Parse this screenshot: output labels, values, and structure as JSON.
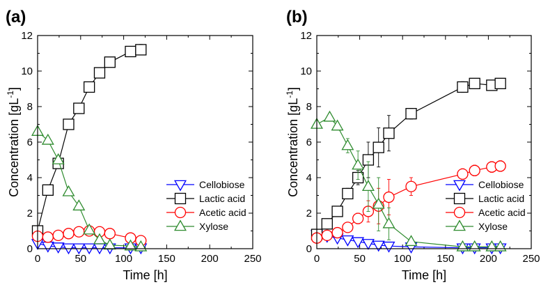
{
  "chart_data": [
    {
      "type": "line",
      "panel_label": "(a)",
      "xlabel": "Time [h]",
      "ylabel_main": "Concentration [gL",
      "ylabel_sup": "-1",
      "ylabel_close": "]",
      "xlim": [
        0,
        250
      ],
      "ylim": [
        0,
        12
      ],
      "x_ticks": [
        "0",
        "50",
        "100",
        "150",
        "200",
        "250"
      ],
      "y_ticks": [
        "0",
        "2",
        "4",
        "6",
        "8",
        "10",
        "12"
      ],
      "grid": false,
      "legend": "bottom-right",
      "series": [
        {
          "name": "Cellobiose",
          "color": "#0000ff",
          "marker": "triangle-down",
          "x": [
            0,
            12,
            24,
            36,
            48,
            60,
            72,
            84,
            108,
            120
          ],
          "y": [
            0.3,
            0.15,
            0.1,
            0.05,
            0.05,
            0.05,
            0.05,
            0.05,
            0.05,
            0.05
          ],
          "err": [
            0.05,
            0.05,
            0.05,
            0.05,
            0.05,
            0.05,
            0.05,
            0.05,
            0.05,
            0.05
          ]
        },
        {
          "name": "Lactic acid",
          "color": "#000000",
          "marker": "square",
          "x": [
            0,
            12,
            24,
            36,
            48,
            60,
            72,
            84,
            108,
            120
          ],
          "y": [
            1.0,
            3.3,
            4.8,
            7.0,
            7.9,
            9.1,
            9.9,
            10.5,
            11.1,
            11.2
          ],
          "err": [
            0.1,
            0.15,
            0.15,
            0.15,
            0.15,
            0.15,
            0.15,
            0.2,
            0.2,
            0.3
          ]
        },
        {
          "name": "Acetic acid",
          "color": "#ff0000",
          "marker": "circle",
          "x": [
            0,
            12,
            24,
            36,
            48,
            60,
            72,
            84,
            108,
            120
          ],
          "y": [
            0.7,
            0.65,
            0.75,
            0.85,
            0.95,
            1.0,
            0.95,
            0.85,
            0.6,
            0.45
          ],
          "err": [
            0.1,
            0.1,
            0.1,
            0.1,
            0.15,
            0.15,
            0.15,
            0.15,
            0.2,
            0.25
          ]
        },
        {
          "name": "Xylose",
          "color": "#2e8b2e",
          "marker": "triangle-up",
          "x": [
            0,
            12,
            24,
            36,
            48,
            60,
            72,
            84,
            108,
            120
          ],
          "y": [
            6.6,
            6.1,
            5.0,
            3.2,
            2.4,
            1.05,
            0.5,
            0.2,
            0.15,
            0.1
          ],
          "err": [
            0.1,
            0.1,
            0.1,
            0.1,
            0.1,
            0.1,
            0.1,
            0.05,
            0.05,
            0.05
          ]
        }
      ]
    },
    {
      "type": "line",
      "panel_label": "(b)",
      "xlabel": "Time [h]",
      "ylabel_main": "Concentration [gL",
      "ylabel_sup": "-1",
      "ylabel_close": "]",
      "xlim": [
        0,
        250
      ],
      "ylim": [
        0,
        12
      ],
      "x_ticks": [
        "0",
        "50",
        "100",
        "150",
        "200",
        "250"
      ],
      "y_ticks": [
        "0",
        "2",
        "4",
        "6",
        "8",
        "10",
        "12"
      ],
      "grid": false,
      "legend": "bottom-right",
      "series": [
        {
          "name": "Cellobiose",
          "color": "#0000ff",
          "marker": "triangle-down",
          "x": [
            0,
            12,
            24,
            36,
            48,
            60,
            72,
            84,
            110,
            170,
            184,
            204,
            214
          ],
          "y": [
            0.8,
            0.7,
            0.6,
            0.5,
            0.4,
            0.3,
            0.2,
            0.15,
            0.1,
            0.05,
            0.05,
            0.05,
            0.05
          ],
          "err": [
            0.1,
            0.1,
            0.1,
            0.1,
            0.1,
            0.1,
            0.1,
            0.1,
            0.1,
            0.05,
            0.05,
            0.05,
            0.05
          ]
        },
        {
          "name": "Lactic acid",
          "color": "#000000",
          "marker": "square",
          "x": [
            0,
            12,
            24,
            36,
            48,
            60,
            72,
            84,
            110,
            170,
            184,
            204,
            214
          ],
          "y": [
            0.8,
            1.4,
            2.1,
            3.1,
            4.0,
            5.0,
            5.7,
            6.5,
            7.6,
            9.1,
            9.3,
            9.2,
            9.3
          ],
          "err": [
            0.2,
            0.2,
            0.2,
            0.3,
            0.4,
            1.0,
            1.1,
            1.0,
            0.3,
            0.3,
            0.2,
            0.2,
            0.2
          ]
        },
        {
          "name": "Acetic acid",
          "color": "#ff0000",
          "marker": "circle",
          "x": [
            0,
            12,
            24,
            36,
            48,
            60,
            72,
            84,
            110,
            170,
            184,
            204,
            214
          ],
          "y": [
            0.6,
            0.75,
            0.9,
            1.2,
            1.7,
            2.1,
            2.4,
            2.9,
            3.5,
            4.2,
            4.4,
            4.6,
            4.65
          ],
          "err": [
            0.1,
            0.1,
            0.2,
            0.2,
            0.3,
            0.6,
            1.0,
            1.0,
            0.5,
            0.3,
            0.3,
            0.3,
            0.3
          ]
        },
        {
          "name": "Xylose",
          "color": "#2e8b2e",
          "marker": "triangle-up",
          "x": [
            0,
            15,
            24,
            36,
            48,
            60,
            72,
            84,
            110,
            170,
            184,
            204,
            214
          ],
          "y": [
            7.0,
            7.4,
            6.9,
            5.8,
            4.7,
            3.5,
            2.5,
            1.4,
            0.4,
            0.1,
            0.1,
            0.1,
            0.1
          ],
          "err": [
            0.1,
            0.2,
            0.2,
            0.4,
            0.8,
            1.4,
            1.5,
            0.9,
            0.2,
            0.1,
            0.1,
            0.1,
            0.1
          ]
        }
      ]
    }
  ]
}
